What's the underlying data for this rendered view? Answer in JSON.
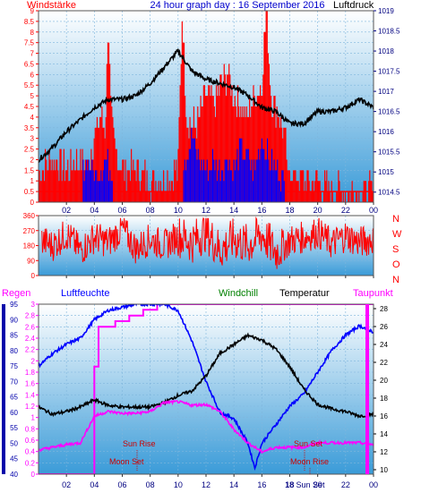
{
  "header": {
    "left_label": "Windstärke",
    "title": "24 hour graph day : 16 September 2016",
    "right_label": "Luftdruck"
  },
  "colors": {
    "panel_top": "#ffffff",
    "panel_bottom": "#3a9bd8",
    "wind": "#ff0000",
    "gust": "#0000ff",
    "pressure": "#000000",
    "direction": "#ff0000",
    "rain": "#ff00ff",
    "humidity": "#0000ff",
    "temperature": "#000000",
    "windchill": "#008000",
    "dewpoint": "#ff00ff",
    "axis_left": "#ff0000",
    "axis_right": "#000080"
  },
  "chart_data": [
    {
      "type": "bar",
      "name": "wind",
      "title": "24 hour graph day : 16 September 2016",
      "x_ticks": [
        "02",
        "04",
        "06",
        "08",
        "10",
        "12",
        "14",
        "16",
        "18",
        "20",
        "22",
        "00"
      ],
      "x_range_hours": [
        0,
        24
      ],
      "ylabel_left": "Windstärke",
      "ylim_left": [
        0,
        9
      ],
      "y_ticks_left": [
        "0",
        "0.5",
        "1",
        "1.5",
        "2",
        "2.5",
        "3",
        "3.5",
        "4",
        "4.5",
        "5",
        "5.5",
        "6",
        "6.5",
        "7",
        "7.5",
        "8",
        "8.5",
        "9"
      ],
      "ylabel_right": "Luftdruck",
      "ylim_right": [
        1014.25,
        1019
      ],
      "y_ticks_right": [
        "1014.5",
        "1015",
        "1015.5",
        "1016",
        "1016.5",
        "1017",
        "1017.5",
        "1018",
        "1018.5",
        "1019"
      ],
      "series": [
        {
          "legend": "Windstärke",
          "hours": [
            0,
            1,
            2,
            3,
            3.5,
            4,
            4.5,
            4.8,
            5,
            5.2,
            5.5,
            6,
            7,
            8,
            9,
            10,
            10.3,
            10.6,
            11,
            11.5,
            12,
            12.5,
            13,
            13.5,
            14,
            14.5,
            15,
            15.5,
            16,
            16.3,
            16.7,
            17,
            17.5,
            18,
            19,
            20,
            21,
            22,
            23,
            24
          ],
          "values": [
            1.5,
            2,
            1.5,
            2,
            1.5,
            3,
            4,
            3.5,
            9,
            4,
            2.5,
            1.5,
            1.5,
            1,
            1,
            1.5,
            9,
            4,
            3.5,
            4,
            5,
            4.5,
            5.5,
            6,
            5,
            4.5,
            4,
            5,
            5.5,
            9,
            5,
            4.5,
            3.5,
            1.5,
            1,
            1,
            0.5,
            0.5,
            0.5,
            0.5
          ]
        },
        {
          "legend": "Böen",
          "hours": [
            3.2,
            3.6,
            4,
            4.4,
            4.8,
            5.2,
            10.5,
            11,
            11.5,
            12,
            12.5,
            13,
            13.5,
            14,
            14.5,
            15,
            15.5,
            16,
            16.5,
            17,
            17.5
          ],
          "values": [
            1.5,
            2,
            1.5,
            1.5,
            2,
            1.5,
            2,
            3,
            2,
            1.5,
            2,
            1.5,
            2,
            1.5,
            2.5,
            2,
            1.5,
            3,
            2,
            1.5,
            1
          ]
        },
        {
          "legend": "Luftdruck",
          "hours": [
            0,
            1,
            2,
            3,
            4,
            5,
            6,
            7,
            8,
            9,
            10,
            11,
            12,
            13,
            14,
            15,
            16,
            17,
            18,
            19,
            20,
            21,
            22,
            23,
            24
          ],
          "values": [
            1015.3,
            1015.6,
            1016,
            1016.3,
            1016.6,
            1016.8,
            1016.8,
            1016.9,
            1017.2,
            1017.6,
            1018,
            1017.5,
            1017.3,
            1017.2,
            1017.1,
            1016.9,
            1016.6,
            1016.5,
            1016.2,
            1016.2,
            1016.5,
            1016.5,
            1016.6,
            1016.8,
            1016.6
          ]
        }
      ]
    },
    {
      "type": "line",
      "name": "wind-direction",
      "x_ticks": [
        "02",
        "04",
        "06",
        "08",
        "10",
        "12",
        "14",
        "16",
        "18",
        "20",
        "22",
        "00"
      ],
      "x_range_hours": [
        0,
        24
      ],
      "ylim": [
        0,
        360
      ],
      "y_ticks": [
        "0",
        "90",
        "180",
        "270",
        "360"
      ],
      "compass_labels": [
        "N",
        "W",
        "S",
        "O",
        "N"
      ],
      "series": [
        {
          "legend": "Windrichtung",
          "hours": [
            0,
            1,
            2,
            3,
            4,
            5,
            6,
            7,
            8,
            9,
            10,
            11,
            12,
            13,
            14,
            15,
            16,
            17,
            18,
            19,
            20,
            21,
            22,
            23,
            24
          ],
          "values": [
            220,
            180,
            250,
            150,
            230,
            200,
            280,
            160,
            220,
            180,
            240,
            200,
            270,
            150,
            220,
            180,
            250,
            140,
            210,
            230,
            260,
            190,
            240,
            200,
            220
          ]
        }
      ]
    },
    {
      "type": "line",
      "name": "humidity-temperature",
      "x_ticks": [
        "02",
        "04",
        "06",
        "08",
        "10",
        "12",
        "14",
        "16",
        "18",
        "20",
        "22",
        "00"
      ],
      "x_range_hours": [
        0,
        24
      ],
      "legend": [
        "Regen",
        "Luftfeuchte",
        "Windchill",
        "Temperatur",
        "Taupunkt"
      ],
      "ylabel_left_outer": "Regen",
      "ylim_left_outer": [
        0,
        3
      ],
      "y_ticks_left_outer": [
        "0",
        "0.2",
        "0.4",
        "0.6",
        "0.8",
        "1",
        "1.2",
        "1.4",
        "1.6",
        "1.8",
        "2",
        "2.2",
        "2.4",
        "2.6",
        "2.8",
        "3"
      ],
      "ylabel_left_inner": "Luftfeuchte",
      "ylim_left_inner": [
        40,
        95
      ],
      "y_ticks_left_inner": [
        "40",
        "45",
        "50",
        "55",
        "60",
        "65",
        "70",
        "75",
        "80",
        "85",
        "90",
        "95"
      ],
      "ylabel_right": "Temperatur",
      "ylim_right": [
        9.5,
        28.5
      ],
      "y_ticks_right": [
        "10",
        "12",
        "14",
        "16",
        "18",
        "20",
        "22",
        "24",
        "26",
        "28"
      ],
      "annotations": [
        "Sun Rise",
        "Moon Set",
        "Sun Set",
        "Moon Rise",
        "18 Sun Set"
      ],
      "series": [
        {
          "legend": "Regen",
          "hours": [
            0,
            3.9,
            4,
            4.3,
            5.5,
            6.5,
            7.5,
            8.5,
            9.5,
            10,
            24
          ],
          "values": [
            0,
            0,
            1.9,
            2.6,
            2.7,
            2.8,
            2.9,
            3,
            3,
            3,
            3
          ]
        },
        {
          "legend": "Luftfeuchte",
          "hours": [
            0,
            1,
            2,
            3,
            4,
            5,
            6,
            7,
            8,
            9,
            10,
            11,
            12,
            13,
            14,
            15,
            15.5,
            16,
            17,
            18,
            19,
            20,
            21,
            22,
            23,
            24
          ],
          "values": [
            75,
            79,
            82,
            84,
            90,
            93,
            94,
            95,
            95,
            95,
            93,
            83,
            70,
            60,
            58,
            50,
            42,
            50,
            56,
            62,
            66,
            73,
            80,
            85,
            88,
            86
          ]
        },
        {
          "legend": "Temperatur",
          "hours": [
            0,
            1,
            2,
            3,
            4,
            5,
            6,
            7,
            8,
            9,
            10,
            11,
            12,
            13,
            14,
            15,
            16,
            17,
            18,
            19,
            20,
            21,
            22,
            23,
            24
          ],
          "values": [
            17,
            16.2,
            16.5,
            17,
            17.8,
            17.2,
            17,
            17,
            17,
            17.5,
            18.3,
            18.8,
            20.5,
            23,
            24,
            25,
            24.5,
            23.5,
            21.5,
            19,
            17.3,
            16.8,
            16.5,
            16,
            16.2
          ]
        },
        {
          "legend": "Taupunkt",
          "hours": [
            0,
            1,
            2,
            3,
            4,
            5,
            6,
            7,
            8,
            9,
            10,
            11,
            12,
            13,
            14,
            15,
            16,
            17,
            18,
            19,
            20,
            21,
            22,
            23,
            24
          ],
          "values": [
            12.2,
            12.5,
            12.8,
            13,
            16,
            16.5,
            16.3,
            16.3,
            16.5,
            17.5,
            17.6,
            17.2,
            17.3,
            16.5,
            14.5,
            13,
            12,
            12.5,
            12.5,
            12.5,
            13,
            13,
            13,
            13,
            12.8
          ]
        }
      ]
    }
  ]
}
